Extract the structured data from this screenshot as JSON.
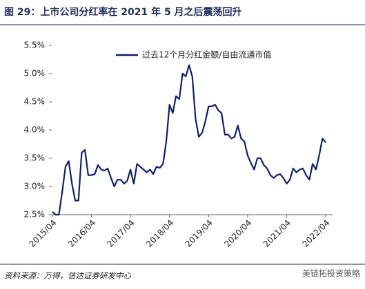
{
  "chart_data": {
    "type": "line",
    "title": "图 29：上市公司分红率在 2021 年 5 月之后震荡回升",
    "source": "资料来源：万得，信达证券研发中心",
    "watermark": "美链拓投资策略",
    "categories": [
      "2015/04",
      null,
      null,
      null,
      null,
      null,
      null,
      null,
      null,
      null,
      null,
      null,
      "2016/04",
      null,
      null,
      null,
      null,
      null,
      null,
      null,
      null,
      null,
      null,
      null,
      "2017/04",
      null,
      null,
      null,
      null,
      null,
      null,
      null,
      null,
      null,
      null,
      null,
      "2018/04",
      null,
      null,
      null,
      null,
      null,
      null,
      null,
      null,
      null,
      null,
      null,
      "2019/04",
      null,
      null,
      null,
      null,
      null,
      null,
      null,
      null,
      null,
      null,
      null,
      "2020/04",
      null,
      null,
      null,
      null,
      null,
      null,
      null,
      null,
      null,
      null,
      null,
      "2021/04",
      null,
      null,
      null,
      null,
      null,
      null,
      null,
      null,
      null,
      null,
      null,
      "2022/04"
    ],
    "series": [
      {
        "name": "过去12个月分红金额/自由流通市值",
        "color": "#0d1f6e",
        "values": [
          2.55,
          2.5,
          2.5,
          2.9,
          3.35,
          3.45,
          3.05,
          2.75,
          2.75,
          3.6,
          3.65,
          3.2,
          3.2,
          3.22,
          3.38,
          3.3,
          3.28,
          3.32,
          3.15,
          3.0,
          3.12,
          3.12,
          3.05,
          3.1,
          3.3,
          3.05,
          3.4,
          3.35,
          3.3,
          3.25,
          3.3,
          3.22,
          3.35,
          3.33,
          3.4,
          3.8,
          4.45,
          4.3,
          4.6,
          4.55,
          5.0,
          4.95,
          5.15,
          4.95,
          4.2,
          3.88,
          3.95,
          4.15,
          4.42,
          4.42,
          4.45,
          4.35,
          4.3,
          3.92,
          3.92,
          3.85,
          3.88,
          4.08,
          3.85,
          3.8,
          3.55,
          3.42,
          3.3,
          3.5,
          3.5,
          3.38,
          3.32,
          3.2,
          3.15,
          3.2,
          3.22,
          3.15,
          3.05,
          3.12,
          3.32,
          3.25,
          3.3,
          3.32,
          3.2,
          3.12,
          3.4,
          3.3,
          3.55,
          3.85,
          3.78
        ]
      }
    ],
    "ylim": [
      2.5,
      5.5
    ],
    "yticks": [
      {
        "value": 2.5,
        "label": "2.5%"
      },
      {
        "value": 3.0,
        "label": "3.0%"
      },
      {
        "value": 3.5,
        "label": "3.5%"
      },
      {
        "value": 4.0,
        "label": "4.0%"
      },
      {
        "value": 4.5,
        "label": "4.5%"
      },
      {
        "value": 5.0,
        "label": "5.0%"
      },
      {
        "value": 5.5,
        "label": "5.5%"
      }
    ],
    "legend": "top"
  }
}
